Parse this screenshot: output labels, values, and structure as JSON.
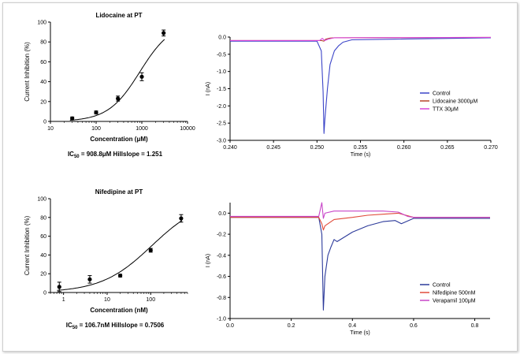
{
  "chart_data": [
    {
      "type": "scatter",
      "title": "Lidocaine at PT",
      "xlabel": "Concentration (μM)",
      "ylabel": "Current Inhibition (%)",
      "x_scale": "log",
      "xlim": [
        10,
        10000
      ],
      "ylim": [
        0,
        100
      ],
      "x_ticks": [
        10,
        100,
        1000,
        10000
      ],
      "x_tick_labels": [
        "10",
        "100",
        "1000",
        "10000"
      ],
      "y_ticks": [
        0,
        20,
        40,
        60,
        80,
        100
      ],
      "y_tick_labels": [
        "0",
        "20",
        "40",
        "60",
        "80",
        "100"
      ],
      "points": [
        {
          "x": 30,
          "y": 3,
          "err": 1.5
        },
        {
          "x": 100,
          "y": 9,
          "err": 1.5
        },
        {
          "x": 300,
          "y": 23,
          "err": 2.5
        },
        {
          "x": 1000,
          "y": 45,
          "err": 4
        },
        {
          "x": 3000,
          "y": 89,
          "err": 3
        }
      ],
      "fit": {
        "ic50": 908.8,
        "hillslope": 1.251
      },
      "annotation": {
        "prefix": "IC",
        "sub": "50",
        "text": " = 908.8μM  Hillslope = 1.251"
      }
    },
    {
      "type": "line",
      "xlabel": "Time (s)",
      "ylabel": "I (nA)",
      "xlim": [
        0.24,
        0.27
      ],
      "ylim": [
        -3.0,
        0.0
      ],
      "x_ticks": [
        0.24,
        0.245,
        0.25,
        0.255,
        0.26,
        0.265,
        0.27
      ],
      "x_tick_labels": [
        "0.240",
        "0.245",
        "0.250",
        "0.255",
        "0.260",
        "0.265",
        "0.270"
      ],
      "y_ticks": [
        0.0,
        -0.5,
        -1.0,
        -1.5,
        -2.0,
        -2.5,
        -3.0
      ],
      "y_tick_labels": [
        "0.0",
        "-0.5",
        "-1.0",
        "-1.5",
        "-2.0",
        "-2.5",
        "-3.0"
      ],
      "legend_position": "bottom-right",
      "series": [
        {
          "name": "Control",
          "color": "#3b44c8",
          "x": [
            0.24,
            0.25,
            0.2505,
            0.2507,
            0.2508,
            0.2509,
            0.2512,
            0.2515,
            0.252,
            0.2525,
            0.253,
            0.254,
            0.27
          ],
          "y": [
            -0.12,
            -0.12,
            -0.4,
            -1.6,
            -2.8,
            -2.4,
            -1.5,
            -0.8,
            -0.4,
            -0.25,
            -0.15,
            -0.08,
            -0.02
          ]
        },
        {
          "name": "Lidocaine 3000μM",
          "color": "#b5442a",
          "x": [
            0.24,
            0.2505,
            0.2508,
            0.251,
            0.2515,
            0.252,
            0.27
          ],
          "y": [
            -0.1,
            -0.1,
            -0.12,
            -0.06,
            -0.03,
            -0.02,
            -0.01
          ]
        },
        {
          "name": "TTX 30μM",
          "color": "#d846d8",
          "x": [
            0.24,
            0.2503,
            0.2506,
            0.2509,
            0.2513,
            0.252,
            0.27
          ],
          "y": [
            -0.1,
            -0.1,
            -0.04,
            -0.1,
            -0.06,
            -0.02,
            -0.01
          ]
        }
      ]
    },
    {
      "type": "scatter",
      "title": "Nifedipine at PT",
      "xlabel": "Concentration (nM)",
      "ylabel": "Current Inhibition (%)",
      "x_scale": "log",
      "xlim": [
        0.5,
        700
      ],
      "ylim": [
        0,
        100
      ],
      "x_ticks": [
        1,
        10,
        100
      ],
      "x_tick_labels": [
        "1",
        "10",
        "100"
      ],
      "y_ticks": [
        0,
        20,
        40,
        60,
        80,
        100
      ],
      "y_tick_labels": [
        "0",
        "20",
        "40",
        "60",
        "80",
        "100"
      ],
      "points": [
        {
          "x": 0.8,
          "y": 6,
          "err": 5
        },
        {
          "x": 4,
          "y": 14,
          "err": 4
        },
        {
          "x": 20,
          "y": 18,
          "err": 1.5
        },
        {
          "x": 100,
          "y": 45,
          "err": 2
        },
        {
          "x": 500,
          "y": 79,
          "err": 4
        }
      ],
      "fit": {
        "ic50": 106.7,
        "hillslope": 0.7506
      },
      "annotation": {
        "prefix": "IC",
        "sub": "50",
        "text": " = 106.7nM  Hillslope = 0.7506"
      }
    },
    {
      "type": "line",
      "xlabel": "Time (s)",
      "ylabel": "I (nA)",
      "xlim": [
        0.0,
        0.85
      ],
      "ylim": [
        -1.0,
        0.1
      ],
      "x_ticks": [
        0.0,
        0.2,
        0.4,
        0.6,
        0.8
      ],
      "x_tick_labels": [
        "0.0",
        "0.2",
        "0.4",
        "0.6",
        "0.8"
      ],
      "y_ticks": [
        0.0,
        -0.2,
        -0.4,
        -0.6,
        -0.8,
        -1.0
      ],
      "y_tick_labels": [
        "0.0",
        "-0.2",
        "-0.4",
        "-0.6",
        "-0.8",
        "-1.0"
      ],
      "legend_position": "bottom-right",
      "series": [
        {
          "name": "Control",
          "color": "#2c3a9a",
          "x": [
            0.0,
            0.29,
            0.3,
            0.305,
            0.31,
            0.32,
            0.33,
            0.34,
            0.35,
            0.4,
            0.45,
            0.5,
            0.54,
            0.56,
            0.6,
            0.85
          ],
          "y": [
            -0.04,
            -0.04,
            -0.2,
            -0.92,
            -0.6,
            -0.4,
            -0.32,
            -0.25,
            -0.27,
            -0.18,
            -0.12,
            -0.08,
            -0.07,
            -0.1,
            -0.05,
            -0.05
          ]
        },
        {
          "name": "Nifedipine 500nM",
          "color": "#e04a3a",
          "x": [
            0.0,
            0.29,
            0.3,
            0.305,
            0.31,
            0.34,
            0.4,
            0.45,
            0.5,
            0.55,
            0.6,
            0.85
          ],
          "y": [
            -0.04,
            -0.04,
            -0.1,
            -0.16,
            -0.12,
            -0.06,
            -0.04,
            -0.02,
            -0.01,
            0.0,
            -0.04,
            -0.04
          ]
        },
        {
          "name": "Verapamil 100μM",
          "color": "#c845c8",
          "x": [
            0.0,
            0.29,
            0.3,
            0.305,
            0.31,
            0.34,
            0.4,
            0.5,
            0.55,
            0.58,
            0.6,
            0.85
          ],
          "y": [
            -0.03,
            -0.03,
            0.1,
            -0.05,
            0.0,
            0.02,
            0.02,
            0.02,
            0.01,
            -0.03,
            -0.04,
            -0.04
          ]
        }
      ]
    }
  ]
}
